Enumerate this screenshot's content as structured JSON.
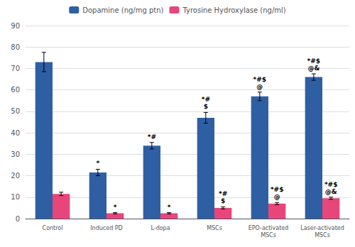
{
  "chart_data": {
    "type": "bar",
    "categories": [
      "Control",
      "Induced PD",
      "L-dopa",
      "MSCs",
      "EPO-activated\nMSCs",
      "Laser-activated\nMSCs"
    ],
    "series": [
      {
        "name": "Dopamine (ng/mg ptn)",
        "color": "#2E5FA3",
        "values": [
          73,
          21.5,
          34,
          47,
          57,
          66
        ],
        "errors": [
          4.5,
          1.5,
          1.5,
          2.5,
          2.0,
          1.5
        ],
        "annotations": [
          null,
          "*",
          "*#",
          "*#\n$",
          "*#$\n@",
          "*#$\n@&"
        ]
      },
      {
        "name": "Tyrosine Hydroxylase (ng/ml)",
        "color": "#E8457A",
        "values": [
          11.5,
          2.5,
          2.5,
          5.0,
          7.0,
          9.5
        ],
        "errors": [
          0.8,
          0.3,
          0.3,
          0.5,
          0.5,
          0.5
        ],
        "annotations": [
          null,
          "*",
          "*",
          "*#\n$",
          "*#$\n@",
          "*#$\n@&"
        ]
      }
    ],
    "ylim": [
      0,
      90
    ],
    "yticks": [
      0,
      10,
      20,
      30,
      40,
      50,
      60,
      70,
      80,
      90
    ],
    "grid": true,
    "legend": "top"
  }
}
